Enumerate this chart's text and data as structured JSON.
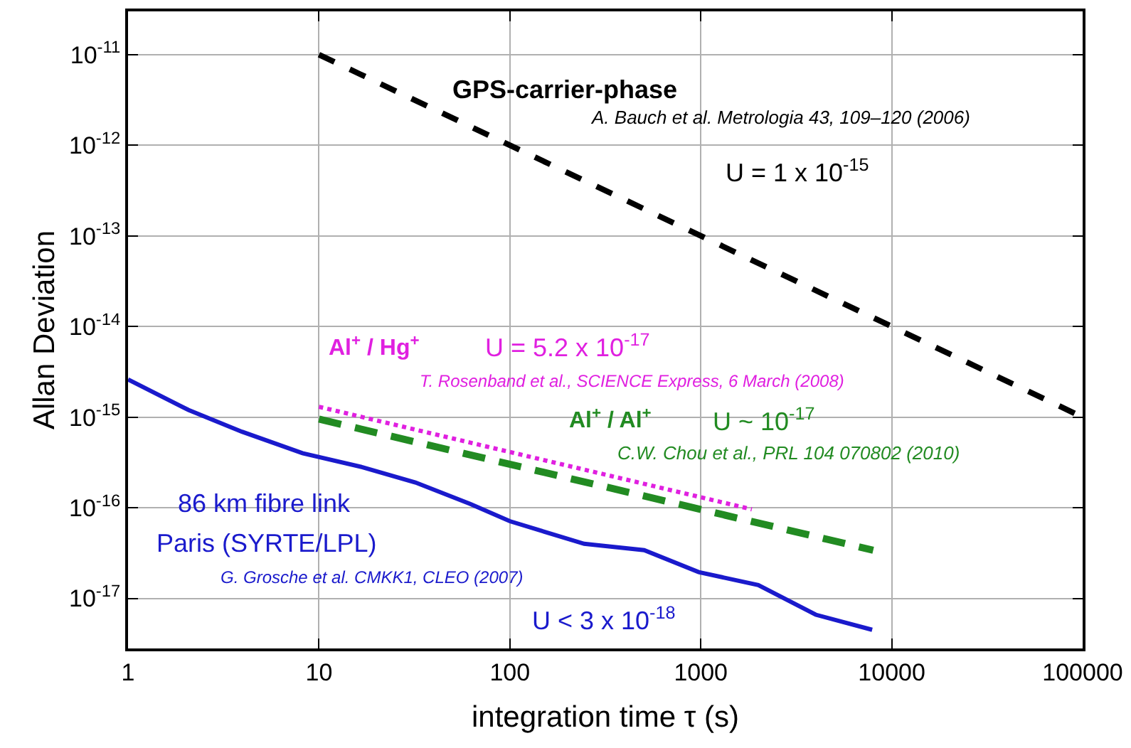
{
  "chart_data": {
    "type": "line",
    "xlabel": "integration time τ (s)",
    "ylabel": "Allan Deviation",
    "log": "xy",
    "grid": true,
    "xlim": [
      1,
      100000
    ],
    "xticks": [
      1,
      10,
      100,
      1000,
      10000,
      100000
    ],
    "ylim": [
      2.8e-18,
      3e-11
    ],
    "yticks": [
      {
        "value": 1e-17,
        "label": "10$^{-17}$"
      },
      {
        "value": 1e-16,
        "label": "10$^{-16}$"
      },
      {
        "value": 1e-15,
        "label": "10$^{-15}$"
      },
      {
        "value": 1e-14,
        "label": "10$^{-14}$"
      },
      {
        "value": 1e-13,
        "label": "10$^{-13}$"
      },
      {
        "value": 1e-12,
        "label": "10$^{-12}$"
      },
      {
        "value": 1e-11,
        "label": "10$^{-11}$"
      }
    ],
    "series": [
      {
        "color": "#000000",
        "line_style": "dashed",
        "x": [
          10,
          100000
        ],
        "values": [
          1e-11,
          1e-15
        ]
      },
      {
        "color": "#e020e0",
        "line_style": "dotted",
        "x": [
          10,
          1850
        ],
        "values": [
          1.3e-15,
          9.6e-17
        ]
      },
      {
        "color": "#228b22",
        "line_style": "dashed",
        "x": [
          10,
          8000
        ],
        "values": [
          9.5e-16,
          3.4e-17
        ]
      },
      {
        "color": "#1a1acc",
        "line_style": "solid",
        "x": [
          1,
          2.07,
          3.95,
          8.2,
          16.9,
          32,
          62,
          100,
          245,
          505,
          975,
          2000,
          4000,
          7900
        ],
        "values": [
          2.6e-15,
          1.2e-15,
          6.9e-16,
          4e-16,
          2.8e-16,
          1.9e-16,
          1.1e-16,
          7.1e-17,
          4e-17,
          3.4e-17,
          1.95e-17,
          1.4e-17,
          6.6e-18,
          4.5e-18
        ]
      }
    ],
    "annotations": [
      "GPS-carrier-phase",
      "A. Bauch et al. Metrologia 43, 109–120 (2006)",
      "U = 1 x 10$^{-15}$",
      "Al$^{+}$ / Hg$^{+}$",
      "U = 5.2 x 10$^{-17}$",
      "T. Rosenband et al., SCIENCE Express, 6 March (2008)",
      "Al$^{+}$ / Al$^{+}$",
      "U ~ 10$^{-17}$",
      "C.W. Chou et al., PRL 104 070802 (2010)",
      "86 km fibre link",
      "Paris (SYRTE/LPL)",
      "G. Grosche et al. CMKK1, CLEO (2007)",
      "U < 3 x 10$^{-18}$"
    ]
  }
}
